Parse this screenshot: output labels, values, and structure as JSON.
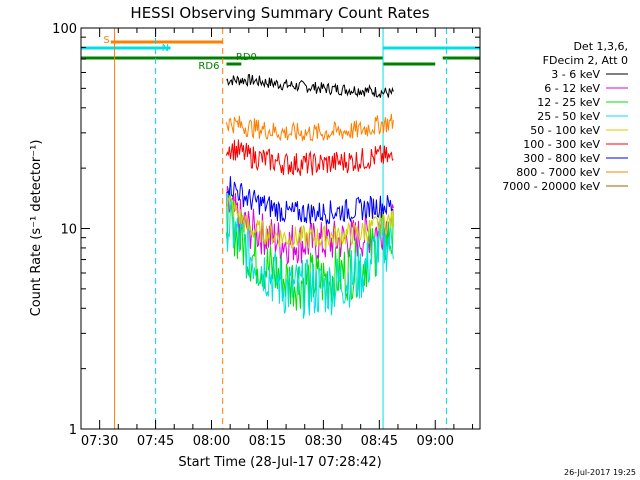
{
  "chart_data": {
    "type": "line",
    "title": "HESSI Observing Summary Count Rates",
    "xlabel": "Start Time (28-Jul-17 07:28:42)",
    "ylabel": "Count Rate (s⁻¹ detector⁻¹)",
    "ylim": [
      1,
      100
    ],
    "yscale": "log",
    "xlim": [
      "07:25",
      "09:12"
    ],
    "y_ticks": [
      "1",
      "10",
      "100"
    ],
    "x_ticks": [
      "07:30",
      "07:45",
      "08:00",
      "08:15",
      "08:30",
      "08:45",
      "09:00"
    ],
    "grid": false,
    "legend_placement": "top-right outside",
    "legend_header": [
      "Det 1,3,6,",
      "FDecim 2, Att 0"
    ],
    "data_start": "08:04",
    "data_end": "08:50",
    "series": [
      {
        "name": "3 - 6 keV",
        "color": "#000000",
        "x": [
          "08:04",
          "08:10",
          "08:20",
          "08:30",
          "08:40",
          "08:45",
          "08:49"
        ],
        "y": [
          55,
          55,
          52,
          50,
          49,
          48,
          47
        ]
      },
      {
        "name": "6 - 12 keV",
        "color": "#e000e0",
        "x": [
          "08:04",
          "08:10",
          "08:20",
          "08:30",
          "08:40",
          "08:45",
          "08:49"
        ],
        "y": [
          13,
          10,
          8.5,
          8.5,
          9,
          10,
          10.5
        ]
      },
      {
        "name": "12 - 25 keV",
        "color": "#00e000",
        "x": [
          "08:04",
          "08:10",
          "08:20",
          "08:30",
          "08:40",
          "08:45",
          "08:49"
        ],
        "y": [
          12,
          7.5,
          5.5,
          5.5,
          6.5,
          8.5,
          9
        ]
      },
      {
        "name": "25 - 50 keV",
        "color": "#00e0e0",
        "x": [
          "08:04",
          "08:10",
          "08:20",
          "08:30",
          "08:40",
          "08:45",
          "08:49"
        ],
        "y": [
          11,
          7.5,
          5,
          5,
          6,
          8,
          9
        ]
      },
      {
        "name": "50 - 100 keV",
        "color": "#d0d000",
        "x": [
          "08:04",
          "08:10",
          "08:20",
          "08:30",
          "08:40",
          "08:45",
          "08:49"
        ],
        "y": [
          14,
          10,
          9,
          9,
          9.5,
          10.5,
          11
        ]
      },
      {
        "name": "100 - 300 keV",
        "color": "#ff0000",
        "x": [
          "08:04",
          "08:10",
          "08:20",
          "08:30",
          "08:40",
          "08:45",
          "08:49"
        ],
        "y": [
          26,
          23,
          21,
          21,
          22,
          23,
          22
        ]
      },
      {
        "name": "300 - 800 keV",
        "color": "#0000ff",
        "x": [
          "08:04",
          "08:10",
          "08:20",
          "08:30",
          "08:40",
          "08:45",
          "08:49"
        ],
        "y": [
          17,
          14,
          12,
          12,
          12.5,
          13,
          13
        ]
      },
      {
        "name": "800 - 7000 keV",
        "color": "#ff8000",
        "x": [
          "08:04",
          "08:10",
          "08:20",
          "08:30",
          "08:40",
          "08:45",
          "08:49"
        ],
        "y": [
          34,
          32,
          30,
          30,
          31,
          33,
          34
        ]
      },
      {
        "name": "7000 - 20000 keV",
        "color": "#a06000",
        "x": [],
        "y": []
      }
    ],
    "flags": [
      {
        "label": "S",
        "color": "#ff8000",
        "start": "07:33",
        "end": "08:03"
      },
      {
        "label": "N",
        "color": "#00e0e0",
        "start": "07:25",
        "end": "07:49"
      },
      {
        "label": "N",
        "color": "#00e0e0",
        "start": "08:46",
        "end": "09:12"
      },
      {
        "label": "RD6",
        "color": "#008000",
        "start": "08:04",
        "end": "08:08"
      },
      {
        "label": "RD0",
        "color": "#008000",
        "start": "07:25",
        "end": "08:46"
      },
      {
        "label": "",
        "color": "#008000",
        "start": "08:46",
        "end": "09:00"
      },
      {
        "label": "",
        "color": "#008000",
        "start": "09:02",
        "end": "09:12"
      }
    ],
    "vertical_lines": [
      {
        "time": "07:34",
        "color": "#ff8000",
        "style": "solid"
      },
      {
        "time": "07:45",
        "color": "#00e0e0",
        "style": "dashed"
      },
      {
        "time": "08:03",
        "color": "#ff8000",
        "style": "dashed"
      },
      {
        "time": "08:46",
        "color": "#00e0e0",
        "style": "solid"
      },
      {
        "time": "09:03",
        "color": "#00e0e0",
        "style": "dashed"
      }
    ]
  },
  "stamp": "26-Jul-2017 19:25"
}
